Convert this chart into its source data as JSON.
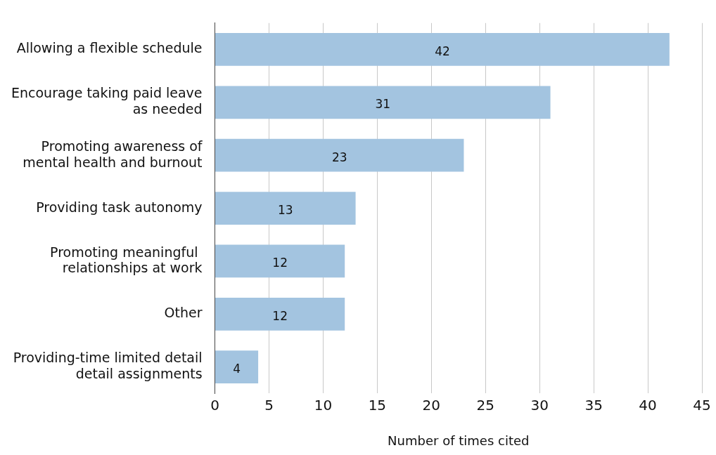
{
  "chart_data": {
    "type": "bar",
    "orientation": "horizontal",
    "xlabel": "Number of times cited",
    "categories": [
      "Allowing a flexible schedule",
      "Encourage taking paid leave as needed",
      "Promoting awareness of mental health and burnout",
      "Providing task autonomy",
      "Promoting meaningful  relationships at work",
      "Other",
      "Providing-time limited detail detail assignments"
    ],
    "values": [
      42,
      31,
      23,
      13,
      12,
      12,
      4
    ],
    "color": "#a3c4e0",
    "xlim": [
      0,
      45
    ],
    "xticks": [
      0,
      5,
      10,
      15,
      20,
      25,
      30,
      35,
      40,
      45
    ],
    "grid": "x",
    "data_labels": true,
    "legend": false
  }
}
